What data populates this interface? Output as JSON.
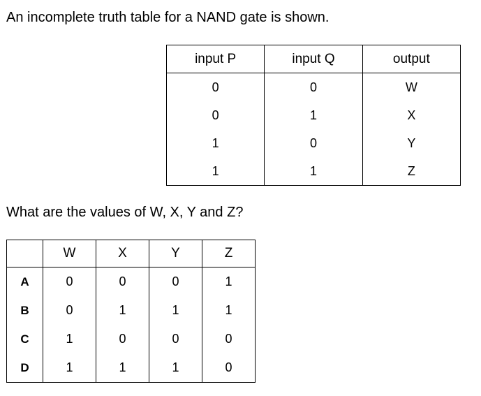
{
  "intro": "An incomplete truth table for a NAND gate is shown.",
  "truth_table": {
    "headers": [
      "input P",
      "input Q",
      "output"
    ],
    "rows": [
      [
        "0",
        "0",
        "W"
      ],
      [
        "0",
        "1",
        "X"
      ],
      [
        "1",
        "0",
        "Y"
      ],
      [
        "1",
        "1",
        "Z"
      ]
    ]
  },
  "question": "What are the values of W, X, Y and Z?",
  "answer_table": {
    "headers": [
      "W",
      "X",
      "Y",
      "Z"
    ],
    "rows": [
      {
        "option": "A",
        "values": [
          "0",
          "0",
          "0",
          "1"
        ]
      },
      {
        "option": "B",
        "values": [
          "0",
          "1",
          "1",
          "1"
        ]
      },
      {
        "option": "C",
        "values": [
          "1",
          "0",
          "0",
          "0"
        ]
      },
      {
        "option": "D",
        "values": [
          "1",
          "1",
          "1",
          "0"
        ]
      }
    ]
  }
}
